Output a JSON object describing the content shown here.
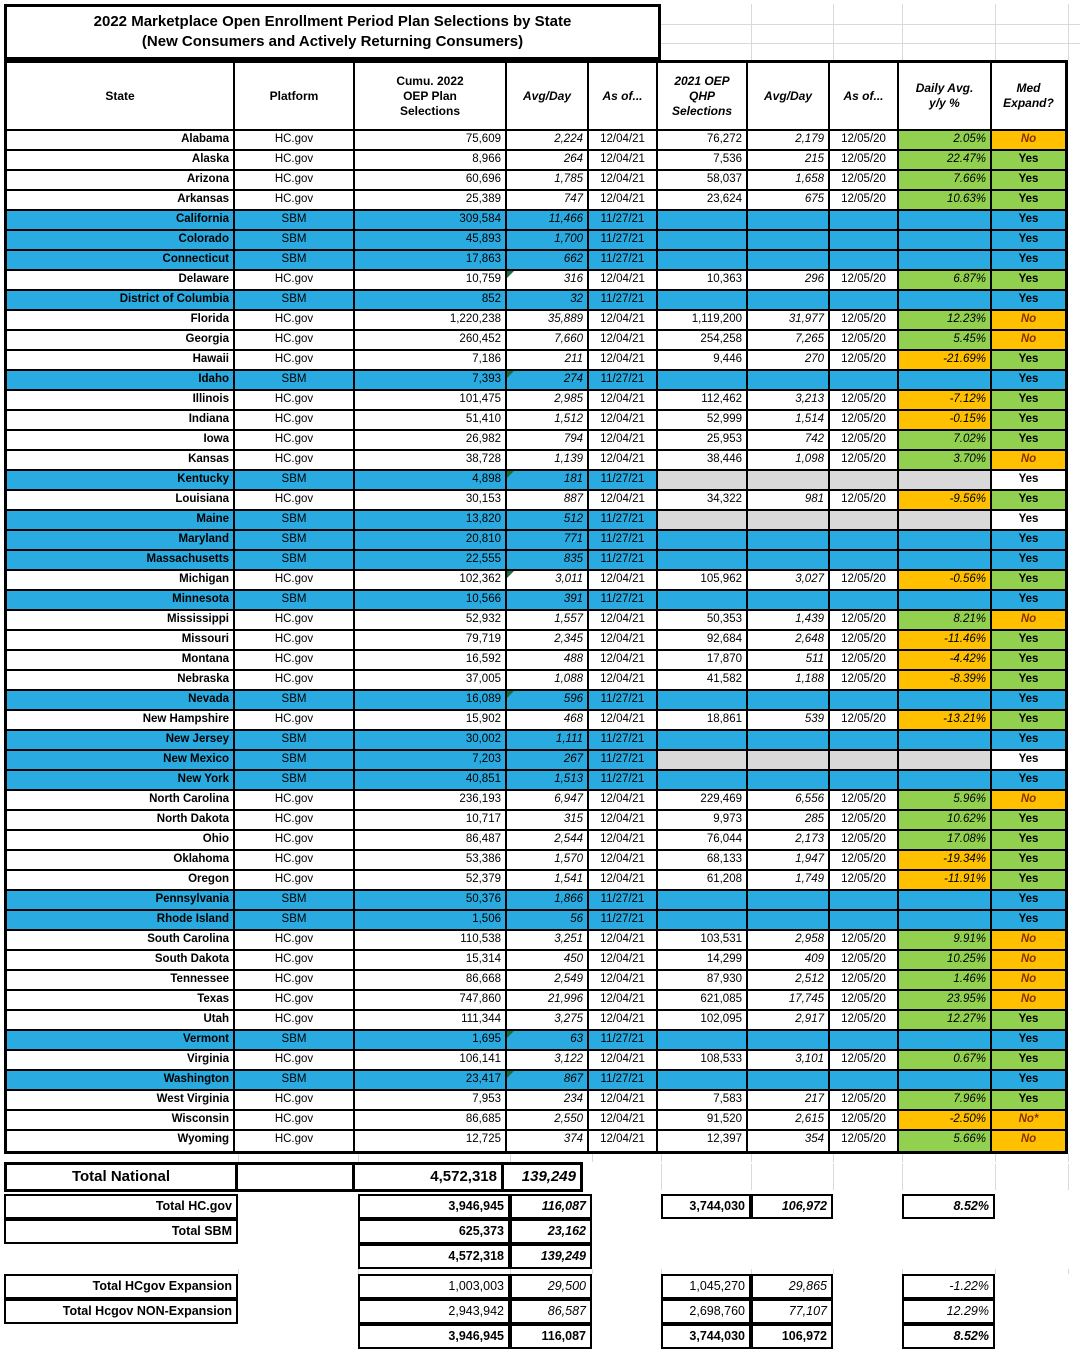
{
  "title": {
    "line1": "2022 Marketplace Open Enrollment Period Plan Selections by State",
    "line2": "(New Consumers and Actively Returning Consumers)"
  },
  "columns": {
    "state": "State",
    "platform": "Platform",
    "sel2022": "Cumu. 2022\nOEP Plan\nSelections",
    "avg1": "Avg/Day",
    "asof1": "As of...",
    "sel2021": "2021 OEP\nQHP\nSelections",
    "avg2": "Avg/Day",
    "asof2": "As of...",
    "yy": "Daily Avg.\ny/y %",
    "med": "Med\nExpand?"
  },
  "rows": [
    {
      "state": "Alabama",
      "platform": "HC.gov",
      "sel2022": "75,609",
      "avg2022": "2,224",
      "asof2022": "12/04/21",
      "sel2021": "76,272",
      "avg2021": "2,179",
      "asof2021": "12/05/20",
      "yy": "2.05%",
      "yy_bg": "green",
      "med": "No",
      "med_bg": "orange",
      "style": "hcgov",
      "tri": false
    },
    {
      "state": "Alaska",
      "platform": "HC.gov",
      "sel2022": "8,966",
      "avg2022": "264",
      "asof2022": "12/04/21",
      "sel2021": "7,536",
      "avg2021": "215",
      "asof2021": "12/05/20",
      "yy": "22.47%",
      "yy_bg": "green",
      "med": "Yes",
      "med_bg": "green",
      "style": "hcgov",
      "tri": false
    },
    {
      "state": "Arizona",
      "platform": "HC.gov",
      "sel2022": "60,696",
      "avg2022": "1,785",
      "asof2022": "12/04/21",
      "sel2021": "58,037",
      "avg2021": "1,658",
      "asof2021": "12/05/20",
      "yy": "7.66%",
      "yy_bg": "green",
      "med": "Yes",
      "med_bg": "green",
      "style": "hcgov",
      "tri": false
    },
    {
      "state": "Arkansas",
      "platform": "HC.gov",
      "sel2022": "25,389",
      "avg2022": "747",
      "asof2022": "12/04/21",
      "sel2021": "23,624",
      "avg2021": "675",
      "asof2021": "12/05/20",
      "yy": "10.63%",
      "yy_bg": "green",
      "med": "Yes",
      "med_bg": "green",
      "style": "hcgov",
      "tri": false
    },
    {
      "state": "California",
      "platform": "SBM",
      "sel2022": "309,584",
      "avg2022": "11,466",
      "asof2022": "11/27/21",
      "sel2021": "",
      "avg2021": "",
      "asof2021": "",
      "yy": "",
      "yy_bg": "blue",
      "med": "Yes",
      "med_bg": "blue",
      "style": "sbm",
      "tri": false
    },
    {
      "state": "Colorado",
      "platform": "SBM",
      "sel2022": "45,893",
      "avg2022": "1,700",
      "asof2022": "11/27/21",
      "sel2021": "",
      "avg2021": "",
      "asof2021": "",
      "yy": "",
      "yy_bg": "blue",
      "med": "Yes",
      "med_bg": "blue",
      "style": "sbm",
      "tri": false
    },
    {
      "state": "Connecticut",
      "platform": "SBM",
      "sel2022": "17,863",
      "avg2022": "662",
      "asof2022": "11/27/21",
      "sel2021": "",
      "avg2021": "",
      "asof2021": "",
      "yy": "",
      "yy_bg": "blue",
      "med": "Yes",
      "med_bg": "blue",
      "style": "sbm",
      "tri": false
    },
    {
      "state": "Delaware",
      "platform": "HC.gov",
      "sel2022": "10,759",
      "avg2022": "316",
      "asof2022": "12/04/21",
      "sel2021": "10,363",
      "avg2021": "296",
      "asof2021": "12/05/20",
      "yy": "6.87%",
      "yy_bg": "green",
      "med": "Yes",
      "med_bg": "green",
      "style": "hcgov",
      "tri": true
    },
    {
      "state": "District of Columbia",
      "platform": "SBM",
      "sel2022": "852",
      "avg2022": "32",
      "asof2022": "11/27/21",
      "sel2021": "",
      "avg2021": "",
      "asof2021": "",
      "yy": "",
      "yy_bg": "blue",
      "med": "Yes",
      "med_bg": "blue",
      "style": "sbm",
      "tri": false
    },
    {
      "state": "Florida",
      "platform": "HC.gov",
      "sel2022": "1,220,238",
      "avg2022": "35,889",
      "asof2022": "12/04/21",
      "sel2021": "1,119,200",
      "avg2021": "31,977",
      "asof2021": "12/05/20",
      "yy": "12.23%",
      "yy_bg": "green",
      "med": "No",
      "med_bg": "orange",
      "style": "hcgov",
      "tri": false
    },
    {
      "state": "Georgia",
      "platform": "HC.gov",
      "sel2022": "260,452",
      "avg2022": "7,660",
      "asof2022": "12/04/21",
      "sel2021": "254,258",
      "avg2021": "7,265",
      "asof2021": "12/05/20",
      "yy": "5.45%",
      "yy_bg": "green",
      "med": "No",
      "med_bg": "orange",
      "style": "hcgov",
      "tri": false
    },
    {
      "state": "Hawaii",
      "platform": "HC.gov",
      "sel2022": "7,186",
      "avg2022": "211",
      "asof2022": "12/04/21",
      "sel2021": "9,446",
      "avg2021": "270",
      "asof2021": "12/05/20",
      "yy": "-21.69%",
      "yy_bg": "orange",
      "med": "Yes",
      "med_bg": "green",
      "style": "hcgov",
      "tri": false
    },
    {
      "state": "Idaho",
      "platform": "SBM",
      "sel2022": "7,393",
      "avg2022": "274",
      "asof2022": "11/27/21",
      "sel2021": "",
      "avg2021": "",
      "asof2021": "",
      "yy": "",
      "yy_bg": "blue",
      "med": "Yes",
      "med_bg": "blue",
      "style": "sbm",
      "tri": true
    },
    {
      "state": "Illinois",
      "platform": "HC.gov",
      "sel2022": "101,475",
      "avg2022": "2,985",
      "asof2022": "12/04/21",
      "sel2021": "112,462",
      "avg2021": "3,213",
      "asof2021": "12/05/20",
      "yy": "-7.12%",
      "yy_bg": "orange",
      "med": "Yes",
      "med_bg": "green",
      "style": "hcgov",
      "tri": false
    },
    {
      "state": "Indiana",
      "platform": "HC.gov",
      "sel2022": "51,410",
      "avg2022": "1,512",
      "asof2022": "12/04/21",
      "sel2021": "52,999",
      "avg2021": "1,514",
      "asof2021": "12/05/20",
      "yy": "-0.15%",
      "yy_bg": "orange",
      "med": "Yes",
      "med_bg": "green",
      "style": "hcgov",
      "tri": false
    },
    {
      "state": "Iowa",
      "platform": "HC.gov",
      "sel2022": "26,982",
      "avg2022": "794",
      "asof2022": "12/04/21",
      "sel2021": "25,953",
      "avg2021": "742",
      "asof2021": "12/05/20",
      "yy": "7.02%",
      "yy_bg": "green",
      "med": "Yes",
      "med_bg": "green",
      "style": "hcgov",
      "tri": false
    },
    {
      "state": "Kansas",
      "platform": "HC.gov",
      "sel2022": "38,728",
      "avg2022": "1,139",
      "asof2022": "12/04/21",
      "sel2021": "38,446",
      "avg2021": "1,098",
      "asof2021": "12/05/20",
      "yy": "3.70%",
      "yy_bg": "green",
      "med": "No",
      "med_bg": "orange",
      "style": "hcgov",
      "tri": false
    },
    {
      "state": "Kentucky",
      "platform": "SBM",
      "sel2022": "4,898",
      "avg2022": "181",
      "asof2022": "11/27/21",
      "sel2021": "",
      "avg2021": "",
      "asof2021": "",
      "yy": "",
      "yy_bg": "gray",
      "med": "Yes",
      "med_bg": "white",
      "style": "sbmgray",
      "tri": true
    },
    {
      "state": "Louisiana",
      "platform": "HC.gov",
      "sel2022": "30,153",
      "avg2022": "887",
      "asof2022": "12/04/21",
      "sel2021": "34,322",
      "avg2021": "981",
      "asof2021": "12/05/20",
      "yy": "-9.56%",
      "yy_bg": "orange",
      "med": "Yes",
      "med_bg": "green",
      "style": "hcgov",
      "tri": false
    },
    {
      "state": "Maine",
      "platform": "SBM",
      "sel2022": "13,820",
      "avg2022": "512",
      "asof2022": "11/27/21",
      "sel2021": "",
      "avg2021": "",
      "asof2021": "",
      "yy": "",
      "yy_bg": "gray",
      "med": "Yes",
      "med_bg": "white",
      "style": "sbmgray",
      "tri": false
    },
    {
      "state": "Maryland",
      "platform": "SBM",
      "sel2022": "20,810",
      "avg2022": "771",
      "asof2022": "11/27/21",
      "sel2021": "",
      "avg2021": "",
      "asof2021": "",
      "yy": "",
      "yy_bg": "blue",
      "med": "Yes",
      "med_bg": "blue",
      "style": "sbm",
      "tri": false
    },
    {
      "state": "Massachusetts",
      "platform": "SBM",
      "sel2022": "22,555",
      "avg2022": "835",
      "asof2022": "11/27/21",
      "sel2021": "",
      "avg2021": "",
      "asof2021": "",
      "yy": "",
      "yy_bg": "blue",
      "med": "Yes",
      "med_bg": "blue",
      "style": "sbm",
      "tri": false
    },
    {
      "state": "Michigan",
      "platform": "HC.gov",
      "sel2022": "102,362",
      "avg2022": "3,011",
      "asof2022": "12/04/21",
      "sel2021": "105,962",
      "avg2021": "3,027",
      "asof2021": "12/05/20",
      "yy": "-0.56%",
      "yy_bg": "orange",
      "med": "Yes",
      "med_bg": "green",
      "style": "hcgov",
      "tri": true
    },
    {
      "state": "Minnesota",
      "platform": "SBM",
      "sel2022": "10,566",
      "avg2022": "391",
      "asof2022": "11/27/21",
      "sel2021": "",
      "avg2021": "",
      "asof2021": "",
      "yy": "",
      "yy_bg": "blue",
      "med": "Yes",
      "med_bg": "blue",
      "style": "sbm",
      "tri": false
    },
    {
      "state": "Mississippi",
      "platform": "HC.gov",
      "sel2022": "52,932",
      "avg2022": "1,557",
      "asof2022": "12/04/21",
      "sel2021": "50,353",
      "avg2021": "1,439",
      "asof2021": "12/05/20",
      "yy": "8.21%",
      "yy_bg": "green",
      "med": "No",
      "med_bg": "orange",
      "style": "hcgov",
      "tri": false
    },
    {
      "state": "Missouri",
      "platform": "HC.gov",
      "sel2022": "79,719",
      "avg2022": "2,345",
      "asof2022": "12/04/21",
      "sel2021": "92,684",
      "avg2021": "2,648",
      "asof2021": "12/05/20",
      "yy": "-11.46%",
      "yy_bg": "orange",
      "med": "Yes",
      "med_bg": "green",
      "style": "hcgov",
      "tri": false
    },
    {
      "state": "Montana",
      "platform": "HC.gov",
      "sel2022": "16,592",
      "avg2022": "488",
      "asof2022": "12/04/21",
      "sel2021": "17,870",
      "avg2021": "511",
      "asof2021": "12/05/20",
      "yy": "-4.42%",
      "yy_bg": "orange",
      "med": "Yes",
      "med_bg": "green",
      "style": "hcgov",
      "tri": false
    },
    {
      "state": "Nebraska",
      "platform": "HC.gov",
      "sel2022": "37,005",
      "avg2022": "1,088",
      "asof2022": "12/04/21",
      "sel2021": "41,582",
      "avg2021": "1,188",
      "asof2021": "12/05/20",
      "yy": "-8.39%",
      "yy_bg": "orange",
      "med": "Yes",
      "med_bg": "green",
      "style": "hcgov",
      "tri": false
    },
    {
      "state": "Nevada",
      "platform": "SBM",
      "sel2022": "16,089",
      "avg2022": "596",
      "asof2022": "11/27/21",
      "sel2021": "",
      "avg2021": "",
      "asof2021": "",
      "yy": "",
      "yy_bg": "blue",
      "med": "Yes",
      "med_bg": "blue",
      "style": "sbm",
      "tri": true
    },
    {
      "state": "New Hampshire",
      "platform": "HC.gov",
      "sel2022": "15,902",
      "avg2022": "468",
      "asof2022": "12/04/21",
      "sel2021": "18,861",
      "avg2021": "539",
      "asof2021": "12/05/20",
      "yy": "-13.21%",
      "yy_bg": "orange",
      "med": "Yes",
      "med_bg": "green",
      "style": "hcgov",
      "tri": false
    },
    {
      "state": "New Jersey",
      "platform": "SBM",
      "sel2022": "30,002",
      "avg2022": "1,111",
      "asof2022": "11/27/21",
      "sel2021": "",
      "avg2021": "",
      "asof2021": "",
      "yy": "",
      "yy_bg": "blue",
      "med": "Yes",
      "med_bg": "blue",
      "style": "sbm",
      "tri": false
    },
    {
      "state": "New Mexico",
      "platform": "SBM",
      "sel2022": "7,203",
      "avg2022": "267",
      "asof2022": "11/27/21",
      "sel2021": "",
      "avg2021": "",
      "asof2021": "",
      "yy": "",
      "yy_bg": "gray",
      "med": "Yes",
      "med_bg": "white",
      "style": "sbmgray",
      "tri": false
    },
    {
      "state": "New York",
      "platform": "SBM",
      "sel2022": "40,851",
      "avg2022": "1,513",
      "asof2022": "11/27/21",
      "sel2021": "",
      "avg2021": "",
      "asof2021": "",
      "yy": "",
      "yy_bg": "blue",
      "med": "Yes",
      "med_bg": "blue",
      "style": "sbm",
      "tri": false
    },
    {
      "state": "North Carolina",
      "platform": "HC.gov",
      "sel2022": "236,193",
      "avg2022": "6,947",
      "asof2022": "12/04/21",
      "sel2021": "229,469",
      "avg2021": "6,556",
      "asof2021": "12/05/20",
      "yy": "5.96%",
      "yy_bg": "green",
      "med": "No",
      "med_bg": "orange",
      "style": "hcgov",
      "tri": false
    },
    {
      "state": "North Dakota",
      "platform": "HC.gov",
      "sel2022": "10,717",
      "avg2022": "315",
      "asof2022": "12/04/21",
      "sel2021": "9,973",
      "avg2021": "285",
      "asof2021": "12/05/20",
      "yy": "10.62%",
      "yy_bg": "green",
      "med": "Yes",
      "med_bg": "green",
      "style": "hcgov",
      "tri": false
    },
    {
      "state": "Ohio",
      "platform": "HC.gov",
      "sel2022": "86,487",
      "avg2022": "2,544",
      "asof2022": "12/04/21",
      "sel2021": "76,044",
      "avg2021": "2,173",
      "asof2021": "12/05/20",
      "yy": "17.08%",
      "yy_bg": "green",
      "med": "Yes",
      "med_bg": "green",
      "style": "hcgov",
      "tri": false
    },
    {
      "state": "Oklahoma",
      "platform": "HC.gov",
      "sel2022": "53,386",
      "avg2022": "1,570",
      "asof2022": "12/04/21",
      "sel2021": "68,133",
      "avg2021": "1,947",
      "asof2021": "12/05/20",
      "yy": "-19.34%",
      "yy_bg": "orange",
      "med": "Yes",
      "med_bg": "green",
      "style": "hcgov",
      "tri": false
    },
    {
      "state": "Oregon",
      "platform": "HC.gov",
      "sel2022": "52,379",
      "avg2022": "1,541",
      "asof2022": "12/04/21",
      "sel2021": "61,208",
      "avg2021": "1,749",
      "asof2021": "12/05/20",
      "yy": "-11.91%",
      "yy_bg": "orange",
      "med": "Yes",
      "med_bg": "green",
      "style": "hcgov",
      "tri": false
    },
    {
      "state": "Pennsylvania",
      "platform": "SBM",
      "sel2022": "50,376",
      "avg2022": "1,866",
      "asof2022": "11/27/21",
      "sel2021": "",
      "avg2021": "",
      "asof2021": "",
      "yy": "",
      "yy_bg": "blue",
      "med": "Yes",
      "med_bg": "blue",
      "style": "sbm",
      "tri": false
    },
    {
      "state": "Rhode Island",
      "platform": "SBM",
      "sel2022": "1,506",
      "avg2022": "56",
      "asof2022": "11/27/21",
      "sel2021": "",
      "avg2021": "",
      "asof2021": "",
      "yy": "",
      "yy_bg": "blue",
      "med": "Yes",
      "med_bg": "blue",
      "style": "sbm",
      "tri": false
    },
    {
      "state": "South Carolina",
      "platform": "HC.gov",
      "sel2022": "110,538",
      "avg2022": "3,251",
      "asof2022": "12/04/21",
      "sel2021": "103,531",
      "avg2021": "2,958",
      "asof2021": "12/05/20",
      "yy": "9.91%",
      "yy_bg": "green",
      "med": "No",
      "med_bg": "orange",
      "style": "hcgov",
      "tri": false
    },
    {
      "state": "South Dakota",
      "platform": "HC.gov",
      "sel2022": "15,314",
      "avg2022": "450",
      "asof2022": "12/04/21",
      "sel2021": "14,299",
      "avg2021": "409",
      "asof2021": "12/05/20",
      "yy": "10.25%",
      "yy_bg": "green",
      "med": "No",
      "med_bg": "orange",
      "style": "hcgov",
      "tri": false
    },
    {
      "state": "Tennessee",
      "platform": "HC.gov",
      "sel2022": "86,668",
      "avg2022": "2,549",
      "asof2022": "12/04/21",
      "sel2021": "87,930",
      "avg2021": "2,512",
      "asof2021": "12/05/20",
      "yy": "1.46%",
      "yy_bg": "green",
      "med": "No",
      "med_bg": "orange",
      "style": "hcgov",
      "tri": false
    },
    {
      "state": "Texas",
      "platform": "HC.gov",
      "sel2022": "747,860",
      "avg2022": "21,996",
      "asof2022": "12/04/21",
      "sel2021": "621,085",
      "avg2021": "17,745",
      "asof2021": "12/05/20",
      "yy": "23.95%",
      "yy_bg": "green",
      "med": "No",
      "med_bg": "orange",
      "style": "hcgov",
      "tri": false
    },
    {
      "state": "Utah",
      "platform": "HC.gov",
      "sel2022": "111,344",
      "avg2022": "3,275",
      "asof2022": "12/04/21",
      "sel2021": "102,095",
      "avg2021": "2,917",
      "asof2021": "12/05/20",
      "yy": "12.27%",
      "yy_bg": "green",
      "med": "Yes",
      "med_bg": "green",
      "style": "hcgov",
      "tri": false
    },
    {
      "state": "Vermont",
      "platform": "SBM",
      "sel2022": "1,695",
      "avg2022": "63",
      "asof2022": "11/27/21",
      "sel2021": "",
      "avg2021": "",
      "asof2021": "",
      "yy": "",
      "yy_bg": "blue",
      "med": "Yes",
      "med_bg": "blue",
      "style": "sbm",
      "tri": true
    },
    {
      "state": "Virginia",
      "platform": "HC.gov",
      "sel2022": "106,141",
      "avg2022": "3,122",
      "asof2022": "12/04/21",
      "sel2021": "108,533",
      "avg2021": "3,101",
      "asof2021": "12/05/20",
      "yy": "0.67%",
      "yy_bg": "green",
      "med": "Yes",
      "med_bg": "green",
      "style": "hcgov",
      "tri": false
    },
    {
      "state": "Washington",
      "platform": "SBM",
      "sel2022": "23,417",
      "avg2022": "867",
      "asof2022": "11/27/21",
      "sel2021": "",
      "avg2021": "",
      "asof2021": "",
      "yy": "",
      "yy_bg": "blue",
      "med": "Yes",
      "med_bg": "blue",
      "style": "sbm",
      "tri": true
    },
    {
      "state": "West Virginia",
      "platform": "HC.gov",
      "sel2022": "7,953",
      "avg2022": "234",
      "asof2022": "12/04/21",
      "sel2021": "7,583",
      "avg2021": "217",
      "asof2021": "12/05/20",
      "yy": "7.96%",
      "yy_bg": "green",
      "med": "Yes",
      "med_bg": "green",
      "style": "hcgov",
      "tri": false
    },
    {
      "state": "Wisconsin",
      "platform": "HC.gov",
      "sel2022": "86,685",
      "avg2022": "2,550",
      "asof2022": "12/04/21",
      "sel2021": "91,520",
      "avg2021": "2,615",
      "asof2021": "12/05/20",
      "yy": "-2.50%",
      "yy_bg": "orange",
      "med": "No*",
      "med_bg": "orange",
      "style": "hcgov",
      "tri": false
    },
    {
      "state": "Wyoming",
      "platform": "HC.gov",
      "sel2022": "12,725",
      "avg2022": "374",
      "asof2022": "12/04/21",
      "sel2021": "12,397",
      "avg2021": "354",
      "asof2021": "12/05/20",
      "yy": "5.66%",
      "yy_bg": "green",
      "med": "No",
      "med_bg": "orange",
      "style": "hcgov",
      "tri": false
    }
  ],
  "totals": {
    "national": {
      "label": "Total National",
      "sel": "4,572,318",
      "avg": "139,249"
    },
    "hcgov": {
      "label": "Total HC.gov",
      "sel": "3,946,945",
      "avg": "116,087",
      "sel21": "3,744,030",
      "avg21": "106,972",
      "yy": "8.52%"
    },
    "sbm": {
      "label": "Total SBM",
      "sel": "625,373",
      "avg": "23,162"
    },
    "platform_sum": {
      "sel": "4,572,318",
      "avg": "139,249"
    },
    "expansion": {
      "label": "Total HCgov Expansion",
      "sel": "1,003,003",
      "avg": "29,500",
      "sel21": "1,045,270",
      "avg21": "29,865",
      "yy": "-1.22%"
    },
    "non_expansion": {
      "label": "Total Hcgov NON-Expansion",
      "sel": "2,943,942",
      "avg": "86,587",
      "sel21": "2,698,760",
      "avg21": "77,107",
      "yy": "12.29%"
    },
    "expansion_sum": {
      "sel": "3,946,945",
      "avg": "116,087",
      "sel21": "3,744,030",
      "avg21": "106,972",
      "yy": "8.52%"
    }
  },
  "colors": {
    "sbm_blue": "#29ABE2",
    "positive_green": "#92D050",
    "negative_orange": "#FFC000",
    "no_data_gray": "#D9D9D9",
    "total_yellow": "#FFFF00",
    "no_text": "#8b3000"
  }
}
